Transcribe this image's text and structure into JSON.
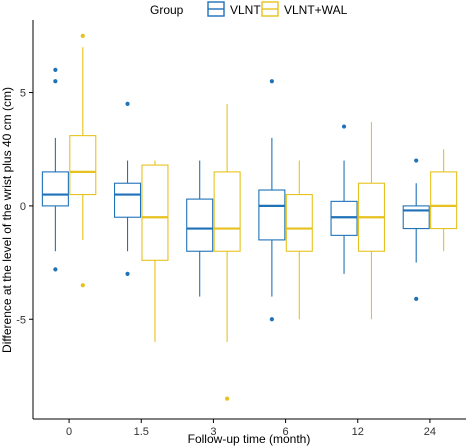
{
  "chart_data": {
    "type": "box",
    "title": "",
    "xlabel": "Follow-up time (month)",
    "ylabel": "Difference at the level of the wrist plus 40 cm (cm)",
    "categories": [
      "0",
      "1.5",
      "3",
      "6",
      "12",
      "24"
    ],
    "yticks": [
      -5,
      0,
      5
    ],
    "ylim": [
      -9.4,
      8.2
    ],
    "grid": false,
    "legend": {
      "title": "Group",
      "position": "top"
    },
    "series": [
      {
        "name": "VLNT",
        "color": "#1f72b8",
        "boxes": [
          {
            "min": -2.0,
            "q1": 0.0,
            "median": 0.5,
            "q3": 1.5,
            "max": 3.0,
            "outliers": [
              6.0,
              5.5,
              -2.8
            ]
          },
          {
            "min": -2.0,
            "q1": -0.5,
            "median": 0.5,
            "q3": 1.0,
            "max": 2.0,
            "outliers": [
              4.5,
              -3.0
            ]
          },
          {
            "min": -4.0,
            "q1": -2.0,
            "median": -1.0,
            "q3": 0.3,
            "max": 2.0,
            "outliers": []
          },
          {
            "min": -4.0,
            "q1": -1.5,
            "median": 0.0,
            "q3": 0.7,
            "max": 3.0,
            "outliers": [
              5.5,
              -5.0
            ]
          },
          {
            "min": -3.0,
            "q1": -1.3,
            "median": -0.5,
            "q3": 0.2,
            "max": 2.0,
            "outliers": [
              3.5
            ]
          },
          {
            "min": -2.5,
            "q1": -1.0,
            "median": -0.2,
            "q3": 0.0,
            "max": 1.0,
            "outliers": [
              2.0,
              -4.1
            ]
          }
        ]
      },
      {
        "name": "VLNT+WAL",
        "color": "#e7c21e",
        "boxes": [
          {
            "min": -1.5,
            "q1": 0.5,
            "median": 1.5,
            "q3": 3.1,
            "max": 7.0,
            "outliers": [
              7.5,
              -3.5
            ]
          },
          {
            "min": -6.0,
            "q1": -2.4,
            "median": -0.5,
            "q3": 1.8,
            "max": 2.0,
            "outliers": []
          },
          {
            "min": -6.0,
            "q1": -2.0,
            "median": -1.0,
            "q3": 1.5,
            "max": 4.5,
            "outliers": [
              -8.5
            ]
          },
          {
            "min": -5.0,
            "q1": -2.0,
            "median": -1.0,
            "q3": 0.5,
            "max": 2.0,
            "outliers": []
          },
          {
            "min": -5.0,
            "q1": -2.0,
            "median": -0.5,
            "q3": 1.0,
            "max": 3.7,
            "outliers": []
          },
          {
            "min": -2.0,
            "q1": -1.0,
            "median": 0.0,
            "q3": 1.5,
            "max": 2.5,
            "outliers": []
          }
        ]
      }
    ]
  }
}
